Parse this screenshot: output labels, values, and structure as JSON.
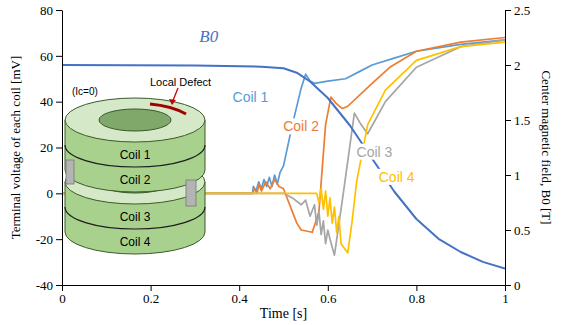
{
  "chart_data": {
    "type": "line",
    "x_label": "Time [s]",
    "y_label": "Terminal voltage of each coil [mV]",
    "y2_label": "Center magnetic field, B0 [T]",
    "annotations": [
      "Local Defect",
      "(Ic=0)"
    ],
    "xlim": [
      0,
      1
    ],
    "xticks": [
      0,
      0.2,
      0.4,
      0.6,
      0.8,
      1
    ],
    "ylim": [
      -40,
      80
    ],
    "yticks": [
      -40,
      -20,
      0,
      20,
      40,
      60,
      80
    ],
    "y2lim": [
      0,
      2.5
    ],
    "y2ticks": [
      0,
      0.5,
      1,
      1.5,
      2,
      2.5
    ],
    "series": [
      {
        "name": "Coil 1",
        "color": "#5b9bd5",
        "x": [
          0,
          0.43,
          0.432,
          0.438,
          0.444,
          0.45,
          0.456,
          0.462,
          0.468,
          0.474,
          0.48,
          0.486,
          0.492,
          0.5,
          0.52,
          0.54,
          0.55,
          0.56,
          0.57,
          0.6,
          0.64,
          0.67,
          0.7,
          0.75,
          0.8,
          0.9,
          1
        ],
        "values": [
          0,
          0,
          3,
          1,
          5,
          2,
          6,
          3,
          7,
          3,
          8,
          4,
          9,
          12,
          30,
          46,
          52,
          49,
          48,
          49,
          50,
          53,
          56,
          59,
          62,
          65,
          67
        ]
      },
      {
        "name": "Coil 2",
        "color": "#ed7d31",
        "x": [
          0,
          0.43,
          0.435,
          0.44,
          0.445,
          0.45,
          0.46,
          0.47,
          0.48,
          0.49,
          0.5,
          0.51,
          0.52,
          0.53,
          0.54,
          0.565,
          0.58,
          0.595,
          0.607,
          0.62,
          0.633,
          0.645,
          0.7,
          0.74,
          0.8,
          0.9,
          1
        ],
        "values": [
          0,
          0,
          2,
          0,
          4,
          1,
          5,
          2,
          6,
          3,
          2,
          -3,
          -8,
          -13,
          -16,
          -17,
          -8,
          30,
          42,
          39,
          37,
          38,
          48,
          55,
          62,
          66,
          68
        ]
      },
      {
        "name": "Coil 3",
        "color": "#a5a5a5",
        "x": [
          0,
          0.5,
          0.52,
          0.54,
          0.55,
          0.56,
          0.57,
          0.575,
          0.58,
          0.585,
          0.59,
          0.595,
          0.6,
          0.605,
          0.615,
          0.635,
          0.66,
          0.675,
          0.69,
          0.73,
          0.8,
          0.9,
          1
        ],
        "values": [
          0,
          0,
          -2,
          -5,
          -3,
          -10,
          -5,
          -14,
          -8,
          -18,
          -12,
          -22,
          -16,
          -20,
          -27,
          0,
          35,
          30,
          26,
          40,
          55,
          64,
          67
        ]
      },
      {
        "name": "Coil 4",
        "color": "#ffc000",
        "x": [
          0,
          0.575,
          0.58,
          0.585,
          0.59,
          0.595,
          0.6,
          0.605,
          0.61,
          0.615,
          0.62,
          0.625,
          0.63,
          0.645,
          0.655,
          0.665,
          0.69,
          0.73,
          0.8,
          0.9,
          1
        ],
        "values": [
          0,
          0,
          -4,
          2,
          -7,
          1,
          -10,
          -2,
          -13,
          -6,
          -17,
          -10,
          -22,
          -26,
          -12,
          5,
          30,
          45,
          58,
          64,
          66
        ]
      },
      {
        "name": "B0",
        "color": "#4472c4",
        "axis": "y2",
        "x": [
          0,
          0.3,
          0.45,
          0.5,
          0.53,
          0.56,
          0.6,
          0.65,
          0.7,
          0.75,
          0.8,
          0.85,
          0.9,
          0.95,
          1
        ],
        "values": [
          2.0,
          1.995,
          1.985,
          1.97,
          1.93,
          1.85,
          1.7,
          1.45,
          1.15,
          0.85,
          0.6,
          0.42,
          0.3,
          0.21,
          0.15
        ]
      }
    ]
  }
}
